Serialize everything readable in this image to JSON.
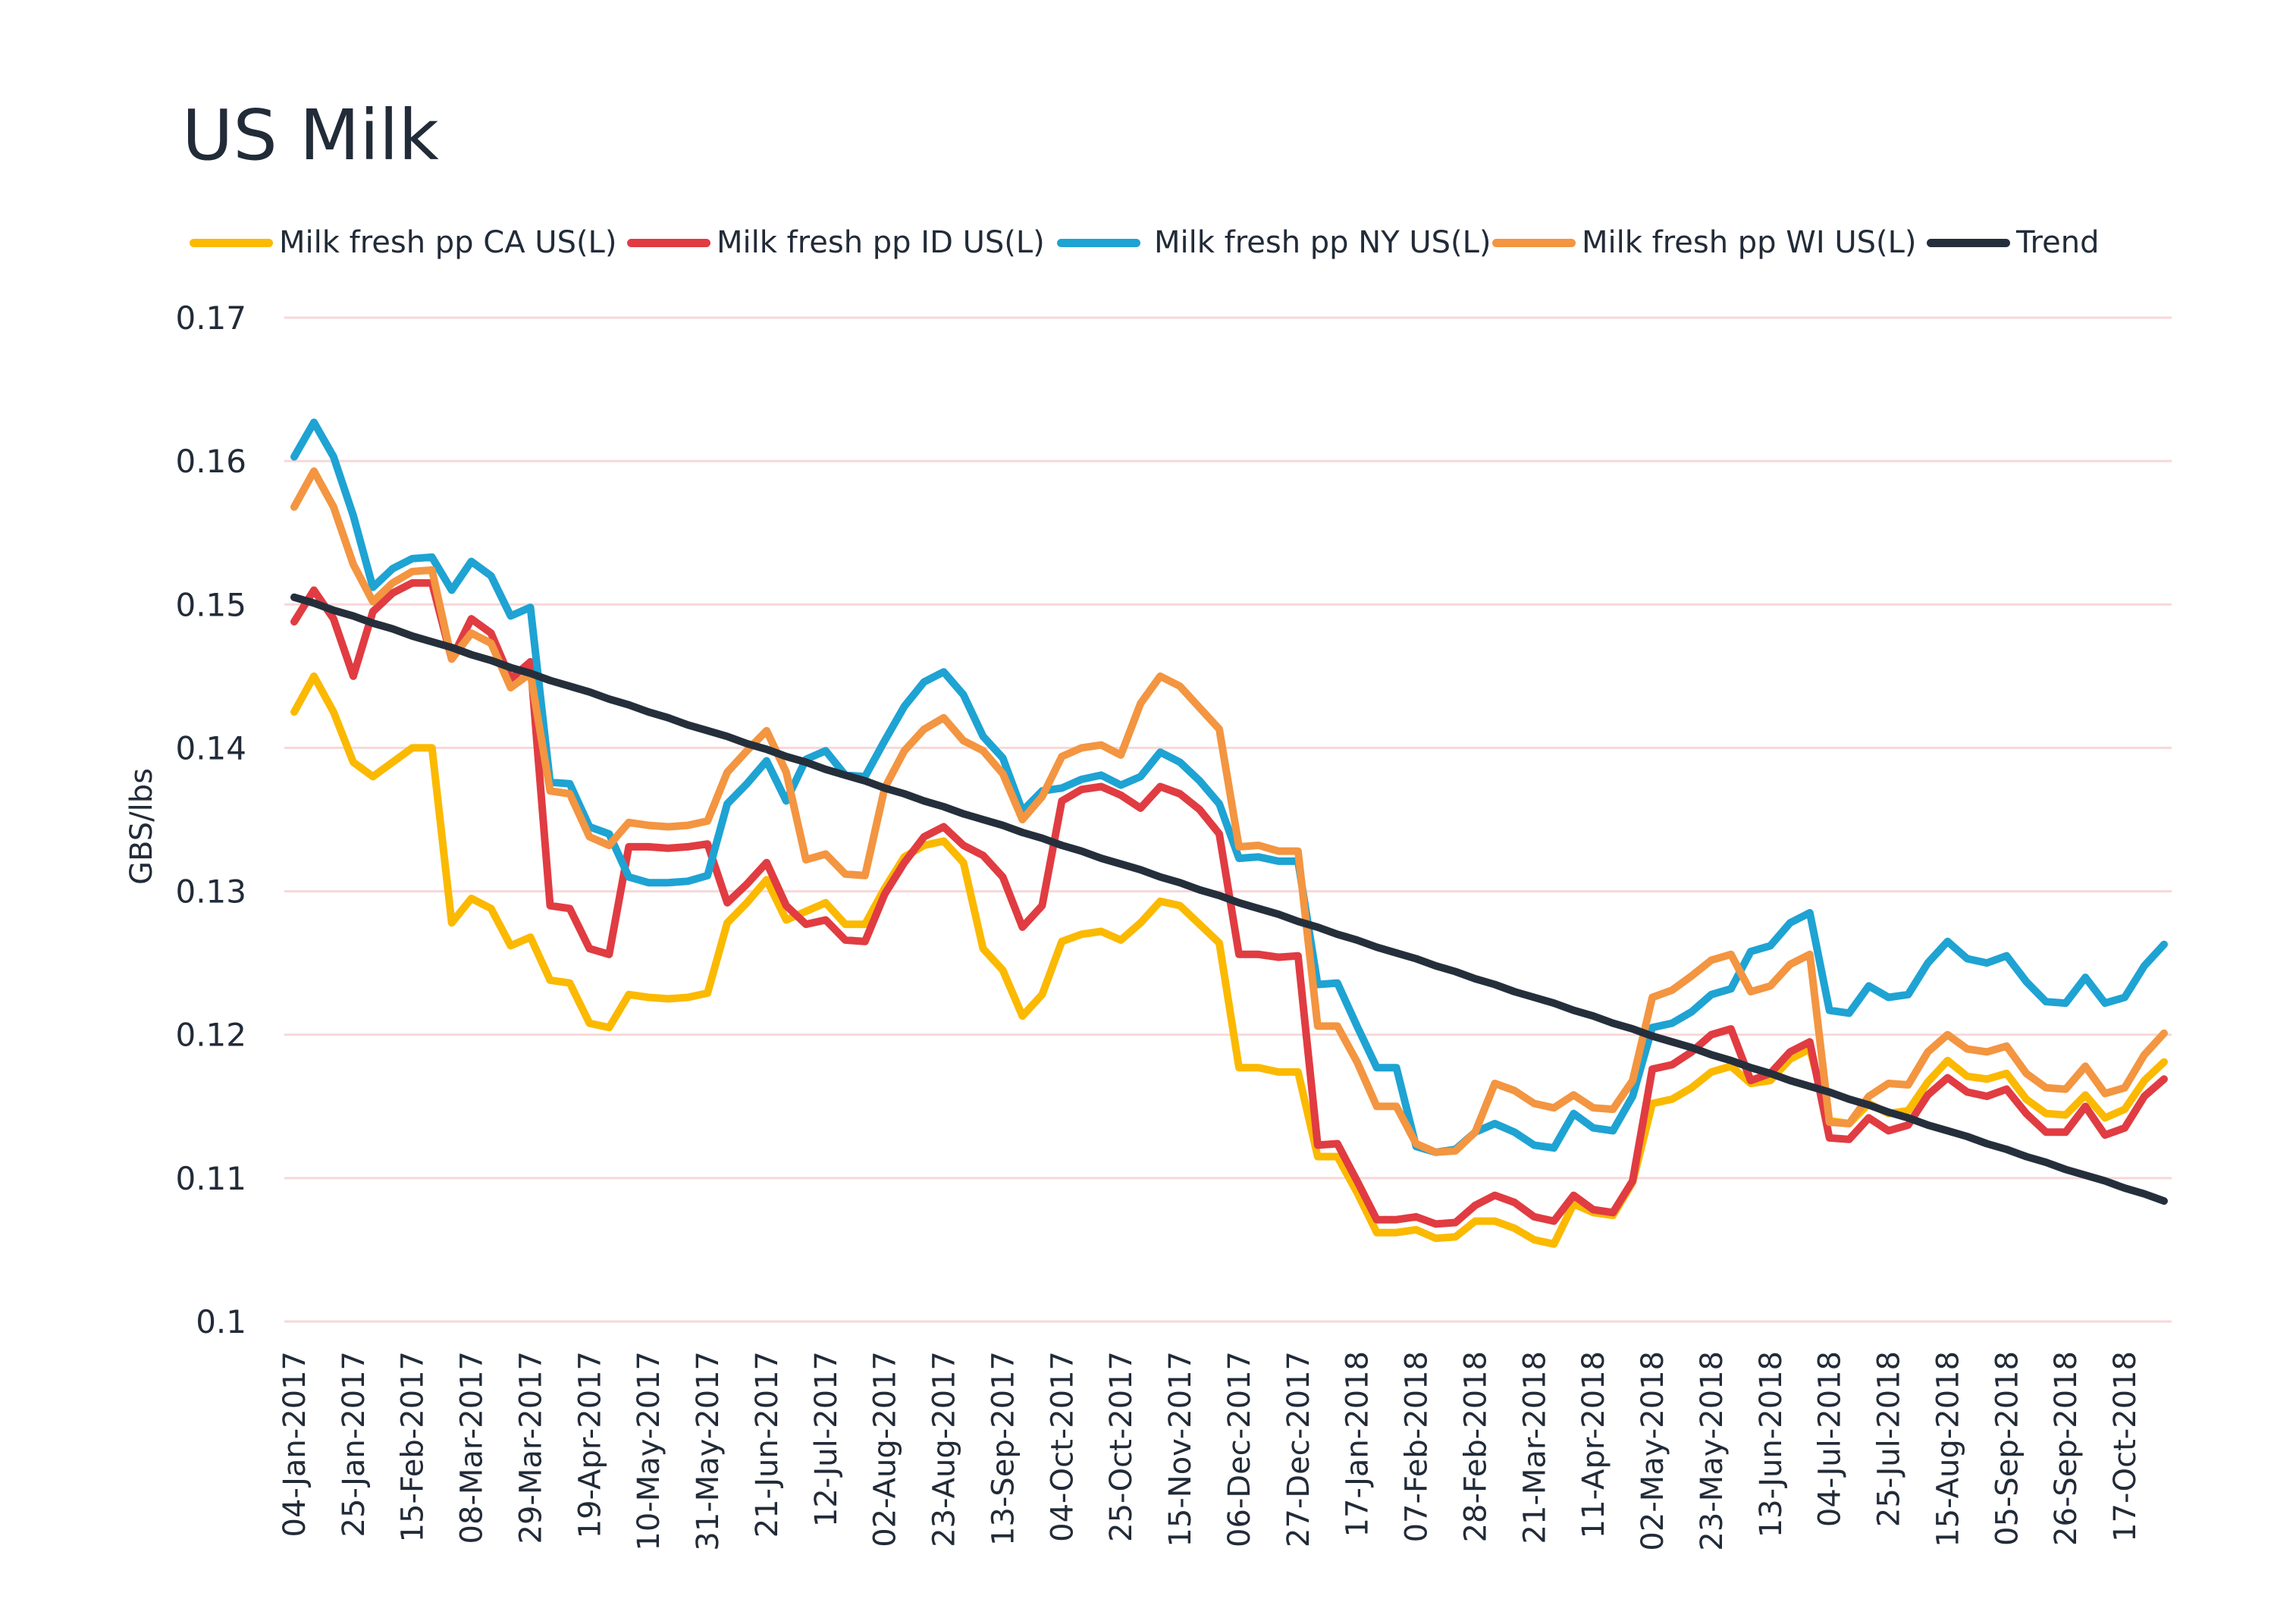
{
  "chart_data": {
    "type": "line",
    "title": "US Milk",
    "xlabel": "",
    "ylabel": "GBS/lbs",
    "ylim": [
      0.1,
      0.17
    ],
    "yticks": [
      "0.1",
      "0.11",
      "0.12",
      "0.13",
      "0.14",
      "0.15",
      "0.16",
      "0.17"
    ],
    "grid": "horizontal",
    "legend_position": "top",
    "x": [
      "04-Jan-2017",
      "11-Jan-2017",
      "18-Jan-2017",
      "25-Jan-2017",
      "01-Feb-2017",
      "08-Feb-2017",
      "15-Feb-2017",
      "22-Feb-2017",
      "01-Mar-2017",
      "08-Mar-2017",
      "15-Mar-2017",
      "22-Mar-2017",
      "29-Mar-2017",
      "05-Apr-2017",
      "12-Apr-2017",
      "19-Apr-2017",
      "26-Apr-2017",
      "03-May-2017",
      "10-May-2017",
      "17-May-2017",
      "24-May-2017",
      "31-May-2017",
      "07-Jun-2017",
      "14-Jun-2017",
      "21-Jun-2017",
      "28-Jun-2017",
      "05-Jul-2017",
      "12-Jul-2017",
      "19-Jul-2017",
      "26-Jul-2017",
      "02-Aug-2017",
      "09-Aug-2017",
      "16-Aug-2017",
      "23-Aug-2017",
      "30-Aug-2017",
      "06-Sep-2017",
      "13-Sep-2017",
      "20-Sep-2017",
      "27-Sep-2017",
      "04-Oct-2017",
      "11-Oct-2017",
      "18-Oct-2017",
      "25-Oct-2017",
      "01-Nov-2017",
      "08-Nov-2017",
      "15-Nov-2017",
      "22-Nov-2017",
      "29-Nov-2017",
      "06-Dec-2017",
      "13-Dec-2017",
      "20-Dec-2017",
      "27-Dec-2017",
      "03-Jan-2018",
      "10-Jan-2018",
      "17-Jan-2018",
      "24-Jan-2018",
      "31-Jan-2018",
      "07-Feb-2018",
      "14-Feb-2018",
      "21-Feb-2018",
      "28-Feb-2018",
      "07-Mar-2018",
      "14-Mar-2018",
      "21-Mar-2018",
      "28-Mar-2018",
      "04-Apr-2018",
      "11-Apr-2018",
      "18-Apr-2018",
      "25-Apr-2018",
      "02-May-2018",
      "09-May-2018",
      "16-May-2018",
      "23-May-2018",
      "30-May-2018",
      "06-Jun-2018",
      "13-Jun-2018",
      "20-Jun-2018",
      "27-Jun-2018",
      "04-Jul-2018",
      "11-Jul-2018",
      "18-Jul-2018",
      "25-Jul-2018",
      "01-Aug-2018",
      "08-Aug-2018",
      "15-Aug-2018",
      "22-Aug-2018",
      "29-Aug-2018",
      "05-Sep-2018",
      "12-Sep-2018",
      "19-Sep-2018",
      "26-Sep-2018",
      "03-Oct-2018",
      "10-Oct-2018",
      "17-Oct-2018",
      "24-Oct-2018",
      "31-Oct-2018"
    ],
    "xtick_every": 3,
    "series": [
      {
        "name": "Milk fresh pp CA US(L)",
        "color": "#fbb900",
        "values": [
          0.1425,
          0.145,
          0.1425,
          0.139,
          0.138,
          0.139,
          0.14,
          0.14,
          0.1278,
          0.1295,
          0.1288,
          0.1262,
          0.1268,
          0.1238,
          0.1236,
          0.1208,
          0.1205,
          0.1228,
          0.1226,
          0.1225,
          0.1226,
          0.1229,
          0.1278,
          0.1292,
          0.1308,
          0.128,
          0.1286,
          0.1292,
          0.1277,
          0.1277,
          0.1302,
          0.1324,
          0.1332,
          0.1335,
          0.132,
          0.126,
          0.1245,
          0.1213,
          0.1228,
          0.1265,
          0.127,
          0.1272,
          0.1266,
          0.1278,
          0.1293,
          0.129,
          0.1277,
          0.1264,
          0.1177,
          0.1177,
          0.1174,
          0.1174,
          0.1115,
          0.1115,
          0.109,
          0.1062,
          0.1062,
          0.1064,
          0.1058,
          0.1059,
          0.107,
          0.107,
          0.1065,
          0.1057,
          0.1054,
          0.1082,
          0.1076,
          0.1074,
          0.1097,
          0.1152,
          0.1155,
          0.1163,
          0.1174,
          0.1178,
          0.1166,
          0.1168,
          0.1183,
          0.119,
          0.114,
          0.1138,
          0.1152,
          0.1145,
          0.1147,
          0.1167,
          0.1182,
          0.1171,
          0.1169,
          0.1173,
          0.1155,
          0.1145,
          0.1144,
          0.1158,
          0.1142,
          0.1148,
          0.1168,
          0.1181
        ]
      },
      {
        "name": "Milk fresh pp ID US(L)",
        "color": "#e03c42",
        "values": [
          0.1488,
          0.151,
          0.149,
          0.145,
          0.1495,
          0.1508,
          0.1515,
          0.1515,
          0.1462,
          0.149,
          0.148,
          0.1448,
          0.146,
          0.129,
          0.1288,
          0.126,
          0.1256,
          0.1331,
          0.1331,
          0.133,
          0.1331,
          0.1333,
          0.1292,
          0.1305,
          0.132,
          0.129,
          0.1277,
          0.128,
          0.1266,
          0.1265,
          0.1298,
          0.132,
          0.1338,
          0.1345,
          0.1332,
          0.1325,
          0.131,
          0.1275,
          0.129,
          0.1363,
          0.1371,
          0.1373,
          0.1367,
          0.1358,
          0.1373,
          0.1368,
          0.1357,
          0.134,
          0.1256,
          0.1256,
          0.1254,
          0.1255,
          0.1123,
          0.1124,
          0.1098,
          0.1071,
          0.1071,
          0.1073,
          0.1068,
          0.1069,
          0.1081,
          0.1088,
          0.1083,
          0.1073,
          0.107,
          0.1088,
          0.1078,
          0.1076,
          0.1098,
          0.1176,
          0.1179,
          0.1188,
          0.12,
          0.1204,
          0.1168,
          0.1173,
          0.1188,
          0.1195,
          0.1128,
          0.1127,
          0.1142,
          0.1133,
          0.1137,
          0.1158,
          0.117,
          0.116,
          0.1157,
          0.1162,
          0.1145,
          0.1132,
          0.1132,
          0.115,
          0.113,
          0.1135,
          0.1157,
          0.1169
        ]
      },
      {
        "name": "Milk fresh pp NY US(L)",
        "color": "#1ea3d3",
        "values": [
          0.1603,
          0.1627,
          0.1603,
          0.1562,
          0.1512,
          0.1525,
          0.1532,
          0.1533,
          0.151,
          0.153,
          0.152,
          0.1492,
          0.1498,
          0.1376,
          0.1375,
          0.1345,
          0.134,
          0.131,
          0.1306,
          0.1306,
          0.1307,
          0.1311,
          0.1361,
          0.1375,
          0.1391,
          0.1363,
          0.1392,
          0.1398,
          0.1381,
          0.138,
          0.1405,
          0.1429,
          0.1446,
          0.1453,
          0.1437,
          0.1408,
          0.1393,
          0.1356,
          0.137,
          0.1372,
          0.1378,
          0.1381,
          0.1374,
          0.138,
          0.1397,
          0.139,
          0.1377,
          0.1361,
          0.1323,
          0.1324,
          0.1321,
          0.1321,
          0.1235,
          0.1236,
          0.1206,
          0.1177,
          0.1177,
          0.1122,
          0.1118,
          0.112,
          0.1132,
          0.1138,
          0.1132,
          0.1123,
          0.1121,
          0.1145,
          0.1135,
          0.1133,
          0.1157,
          0.1205,
          0.1208,
          0.1216,
          0.1228,
          0.1232,
          0.1258,
          0.1262,
          0.1278,
          0.1285,
          0.1217,
          0.1215,
          0.1234,
          0.1226,
          0.1228,
          0.125,
          0.1265,
          0.1253,
          0.125,
          0.1255,
          0.1237,
          0.1223,
          0.1222,
          0.124,
          0.1222,
          0.1226,
          0.1248,
          0.1263
        ]
      },
      {
        "name": "Milk fresh pp WI US(L)",
        "color": "#f39541",
        "values": [
          0.1568,
          0.1593,
          0.1568,
          0.1528,
          0.1502,
          0.1515,
          0.1523,
          0.1524,
          0.1462,
          0.148,
          0.1473,
          0.1442,
          0.1452,
          0.137,
          0.1368,
          0.1338,
          0.1332,
          0.1348,
          0.1346,
          0.1345,
          0.1346,
          0.1349,
          0.1383,
          0.1398,
          0.1412,
          0.1383,
          0.1322,
          0.1326,
          0.1312,
          0.1311,
          0.1372,
          0.1398,
          0.1413,
          0.1421,
          0.1405,
          0.1398,
          0.1382,
          0.135,
          0.1366,
          0.1394,
          0.14,
          0.1402,
          0.1395,
          0.1431,
          0.145,
          0.1443,
          0.1428,
          0.1413,
          0.1331,
          0.1332,
          0.1328,
          0.1328,
          0.1206,
          0.1206,
          0.1181,
          0.115,
          0.115,
          0.1124,
          0.1118,
          0.1119,
          0.1132,
          0.1166,
          0.1161,
          0.1152,
          0.1149,
          0.1158,
          0.1149,
          0.1148,
          0.1168,
          0.1226,
          0.1231,
          0.1241,
          0.1252,
          0.1256,
          0.123,
          0.1234,
          0.1249,
          0.1256,
          0.1139,
          0.1138,
          0.1157,
          0.1166,
          0.1165,
          0.1188,
          0.12,
          0.119,
          0.1188,
          0.1192,
          0.1173,
          0.1163,
          0.1162,
          0.1178,
          0.1159,
          0.1163,
          0.1186,
          0.1201
        ]
      },
      {
        "name": "Trend",
        "color": "#252f3c",
        "values": [
          0.1505,
          0.1501,
          0.1496,
          0.1492,
          0.1487,
          0.1483,
          0.1478,
          0.1474,
          0.147,
          0.1465,
          0.1461,
          0.1456,
          0.1452,
          0.1447,
          0.1443,
          0.1439,
          0.1434,
          0.143,
          0.1425,
          0.1421,
          0.1416,
          0.1412,
          0.1408,
          0.1403,
          0.1399,
          0.1394,
          0.139,
          0.1385,
          0.1381,
          0.1377,
          0.1372,
          0.1368,
          0.1363,
          0.1359,
          0.1354,
          0.135,
          0.1346,
          0.1341,
          0.1337,
          0.1332,
          0.1328,
          0.1323,
          0.1319,
          0.1315,
          0.131,
          0.1306,
          0.1301,
          0.1297,
          0.1292,
          0.1288,
          0.1284,
          0.1279,
          0.1275,
          0.127,
          0.1266,
          0.1261,
          0.1257,
          0.1253,
          0.1248,
          0.1244,
          0.1239,
          0.1235,
          0.123,
          0.1226,
          0.1222,
          0.1217,
          0.1213,
          0.1208,
          0.1204,
          0.1199,
          0.1195,
          0.1191,
          0.1186,
          0.1182,
          0.1177,
          0.1173,
          0.1168,
          0.1164,
          0.116,
          0.1155,
          0.1151,
          0.1146,
          0.1142,
          0.1137,
          0.1133,
          0.1129,
          0.1124,
          0.112,
          0.1115,
          0.1111,
          0.1106,
          0.1102,
          0.1098,
          0.1093,
          0.1089,
          0.1084
        ]
      }
    ]
  }
}
